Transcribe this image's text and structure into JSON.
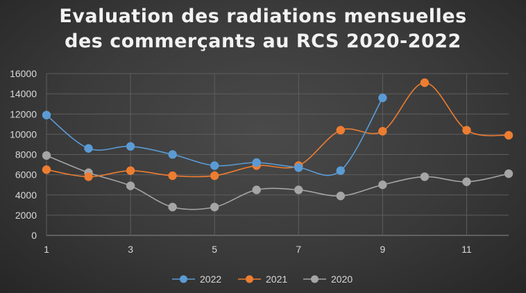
{
  "chart_data": {
    "type": "line",
    "title_lines": [
      "Evaluation des radiations mensuelles",
      "des commerçants au RCS 2020-2022"
    ],
    "xlabel": "",
    "ylabel": "",
    "x": [
      1,
      2,
      3,
      4,
      5,
      6,
      7,
      8,
      9,
      10,
      11,
      12
    ],
    "x_tick_labels": [
      "1",
      "3",
      "5",
      "7",
      "9",
      "11"
    ],
    "x_tick_values": [
      1,
      3,
      5,
      7,
      9,
      11
    ],
    "ylim": [
      0,
      16000
    ],
    "y_tick_labels": [
      "0",
      "2000",
      "4000",
      "6000",
      "8000",
      "10000",
      "12000",
      "14000",
      "16000"
    ],
    "y_tick_values": [
      0,
      2000,
      4000,
      6000,
      8000,
      10000,
      12000,
      14000,
      16000
    ],
    "grid": true,
    "smooth": true,
    "legend_position": "bottom",
    "series": [
      {
        "name": "2022",
        "color": "#5b9bd5",
        "values": [
          11900,
          8600,
          8800,
          8000,
          6900,
          7200,
          6700,
          6400,
          13600,
          null,
          null,
          null
        ]
      },
      {
        "name": "2021",
        "color": "#ed7d31",
        "values": [
          6500,
          5800,
          6400,
          5900,
          5900,
          6900,
          6900,
          10400,
          10300,
          15100,
          10400,
          9900
        ]
      },
      {
        "name": "2020",
        "color": "#a5a5a5",
        "values": [
          7900,
          6200,
          4900,
          2800,
          2800,
          4500,
          4500,
          3900,
          5000,
          5800,
          5300,
          6100
        ]
      }
    ]
  }
}
